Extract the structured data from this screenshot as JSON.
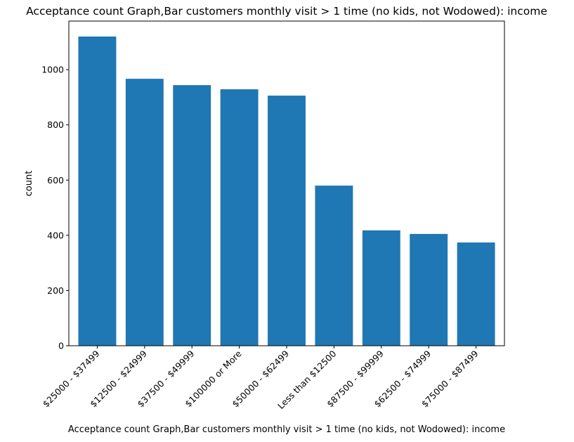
{
  "chart_data": {
    "type": "bar",
    "title": "Acceptance count Graph,Bar customers monthly visit > 1 time (no kids, not Wodowed): income",
    "xlabel": "Acceptance count Graph,Bar customers monthly visit > 1 time (no kids, not Wodowed): income",
    "ylabel": "count",
    "categories": [
      "$25000 - $37499",
      "$12500 - $24999",
      "$37500 - $49999",
      "$100000 or More",
      "$50000 - $62499",
      "Less than $12500",
      "$87500 - $99999",
      "$62500 - $74999",
      "$75000 - $87499"
    ],
    "values": [
      1120,
      967,
      944,
      929,
      906,
      580,
      418,
      405,
      374
    ],
    "ylim": [
      0,
      1176
    ],
    "yticks": [
      0,
      200,
      400,
      600,
      800,
      1000
    ],
    "grid": false,
    "bar_color": "#1f77b4"
  }
}
